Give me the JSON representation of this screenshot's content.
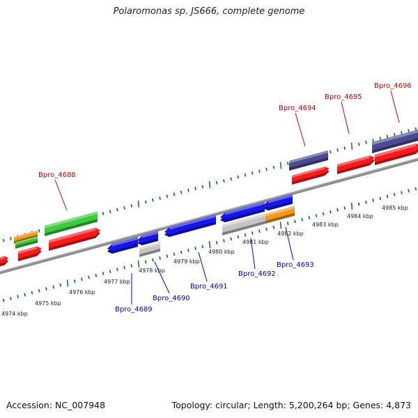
{
  "title": "Polaromonas sp. JS666, complete genome",
  "footer": {
    "accession": "Accession: NC_007948",
    "topology": "Topology: circular; Length: 5,200,264 bp; Genes: 4,873"
  },
  "colors": {
    "forward_label": "#cc0000",
    "reverse_label": "#0000cc",
    "tick": "#1e7a1e",
    "backbone": "#8c8c8c",
    "red_feature": "#ff1a1a",
    "green_feature": "#3ccc3c",
    "orange_feature": "#f39a1a",
    "blue_feature": "#1515ee",
    "gray_feature": "#c4c4c4",
    "purple_feature": "#4a4a90"
  },
  "scale_labels": [
    "4974 kbp",
    "4975 kbp",
    "4976 kbp",
    "4977 kbp",
    "4978 kbp",
    "4979 kbp",
    "4980 kbp",
    "4981 kbp",
    "4982 kbp",
    "4983 kbp",
    "4984 kbp",
    "4985 kbp"
  ],
  "gene_labels": {
    "forward": [
      "Bpro_4688",
      "Bpro_4694",
      "Bpro_4695",
      "Bpro_4696"
    ],
    "reverse": [
      "Bpro_4689",
      "Bpro_4690",
      "Bpro_4691",
      "Bpro_4692",
      "Bpro_4693"
    ]
  }
}
